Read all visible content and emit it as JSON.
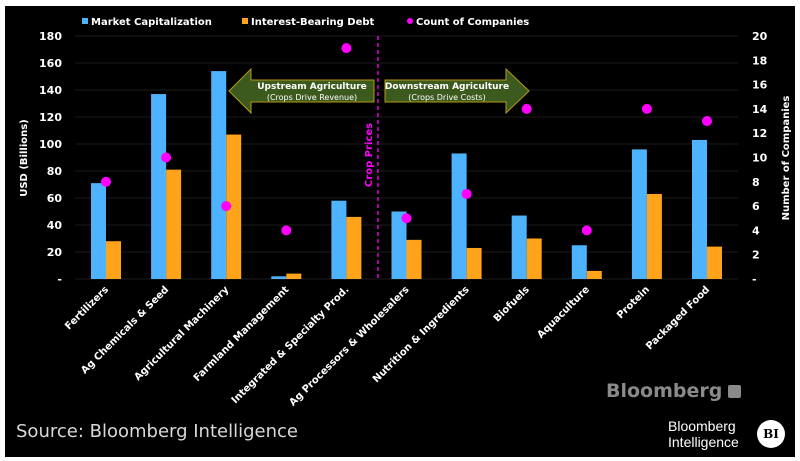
{
  "chart_data": {
    "type": "bar",
    "categories": [
      "Fertilizers",
      "Ag Chemicals & Seed",
      "Agricultural Machinery",
      "Farmland Management",
      "Integrated & Specialty Prod.",
      "Ag Processors & Wholesalers",
      "Nutrition & Ingredients",
      "Biofuels",
      "Aquaculture",
      "Protein",
      "Packaged Food"
    ],
    "series": [
      {
        "name": "Market Capitalization",
        "axis": "left",
        "kind": "bar",
        "color": "#4db3ff",
        "values": [
          71,
          137,
          154,
          2,
          58,
          50,
          93,
          47,
          25,
          96,
          103
        ]
      },
      {
        "name": "Interest-Bearing Debt",
        "axis": "left",
        "kind": "bar",
        "color": "#ffa31a",
        "values": [
          28,
          81,
          107,
          4,
          46,
          29,
          23,
          30,
          6,
          63,
          24
        ]
      },
      {
        "name": "Count of Companies",
        "axis": "right",
        "kind": "scatter",
        "color": "#ff00ff",
        "values": [
          8,
          10,
          6,
          4,
          19,
          5,
          7,
          14,
          4,
          14,
          13
        ]
      }
    ],
    "ylabel": "USD (Billions)",
    "y2label": "Number of Companies",
    "ylim": [
      0,
      180
    ],
    "y2lim": [
      0,
      20
    ],
    "yticks": [
      "-",
      "20",
      "40",
      "60",
      "80",
      "100",
      "120",
      "140",
      "160",
      "180"
    ],
    "y2ticks": [
      "-",
      "2",
      "4",
      "6",
      "8",
      "10",
      "12",
      "14",
      "16",
      "18",
      "20"
    ],
    "legend": "top",
    "grid": true,
    "annotations": {
      "divider_label": "Crop Prices",
      "upstream_title": "Upstream Agriculture",
      "upstream_sub": "(Crops Drive Revenue)",
      "downstream_title": "Downstream Agriculture",
      "downstream_sub": "(Crops Drive Costs)",
      "arrow_color": "#3c5a1e",
      "arrow_border": "#b59a17"
    }
  },
  "footer": {
    "source": "Source: Bloomberg Intelligence",
    "logo": "Bloomberg",
    "brand_line1": "Bloomberg",
    "brand_line2": "Intelligence",
    "badge": "BI"
  }
}
